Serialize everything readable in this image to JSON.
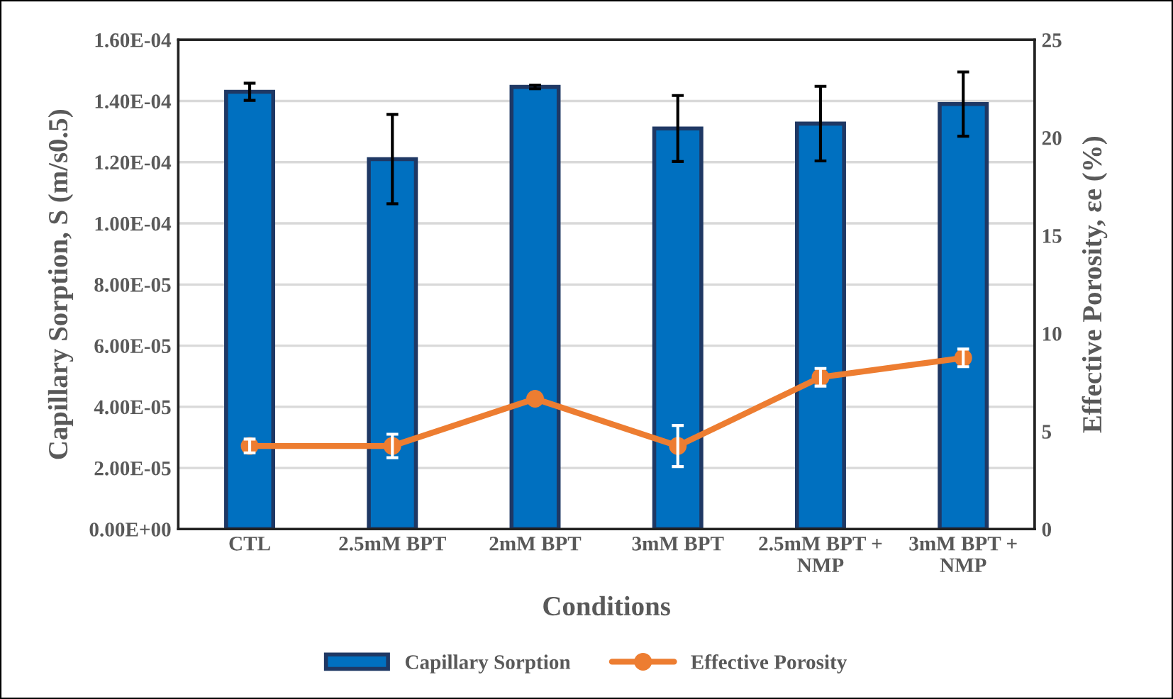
{
  "chart_data": {
    "type": "bar",
    "xlabel": "Conditions",
    "ylabel": "Capillary Sorption, S (m/s0.5)",
    "y2label": "Effective Porosity, εe (%)",
    "categories": [
      "CTL",
      "2.5mM BPT",
      "2mM BPT",
      "3mM BPT",
      "2.5mM BPT +\nNMP",
      "3mM BPT +\nNMP"
    ],
    "series": [
      {
        "name": "Capillary Sorption",
        "color": "#0070c0",
        "values": [
          0.000143,
          0.000121,
          0.0001446,
          0.000131,
          0.0001326,
          0.000139
        ],
        "errors": [
          2.8e-06,
          1.46e-05,
          6e-07,
          1.08e-05,
          1.22e-05,
          1.05e-05
        ]
      },
      {
        "name": "Effective Porosity",
        "type": "line",
        "axis": "y2",
        "color": "#ed7d31",
        "marker": "circle",
        "values": [
          4.25,
          4.25,
          6.66,
          4.25,
          7.76,
          8.75
        ],
        "errors": [
          0.35,
          0.6,
          null,
          1.05,
          0.45,
          0.45
        ]
      }
    ],
    "ylim": [
      0,
      0.00016
    ],
    "yticks": [
      {
        "value": 0,
        "label": "0.00E+00"
      },
      {
        "value": 2e-05,
        "label": "2.00E-05"
      },
      {
        "value": 4e-05,
        "label": "4.00E-05"
      },
      {
        "value": 6e-05,
        "label": "6.00E-05"
      },
      {
        "value": 8e-05,
        "label": "8.00E-05"
      },
      {
        "value": 0.0001,
        "label": "1.00E-04"
      },
      {
        "value": 0.00012,
        "label": "1.20E-04"
      },
      {
        "value": 0.00014,
        "label": "1.40E-04"
      },
      {
        "value": 0.00016,
        "label": "1.60E-04"
      }
    ],
    "y2lim": [
      0,
      25
    ],
    "y2ticks": [
      0,
      5,
      10,
      15,
      20,
      25
    ],
    "grid": "y",
    "legend": "bottom"
  }
}
